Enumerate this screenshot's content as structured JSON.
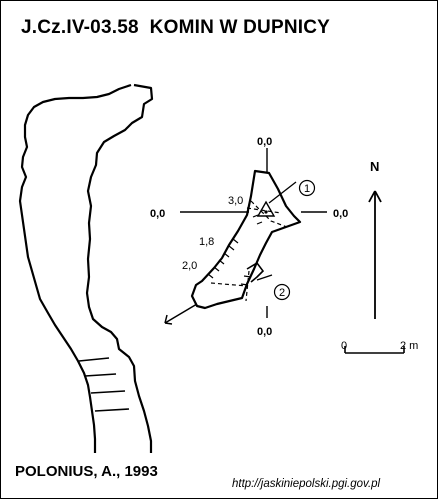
{
  "title": "J.Cz.IV-03.58  KOMIN W DUPNICY",
  "author": "POLONIUS, A., 1993",
  "source_url": "http://jaskiniepolski.pgi.gov.pl",
  "north_label": "N",
  "scale": {
    "start": "0",
    "end": "2 m"
  },
  "section_marks": [
    "1",
    "2"
  ],
  "reference_levels": {
    "top": "0,0",
    "left": "0,0",
    "right": "0,0",
    "bottom": "0,0"
  },
  "depth_labels": [
    "3,0",
    "1,8",
    "2,0"
  ]
}
